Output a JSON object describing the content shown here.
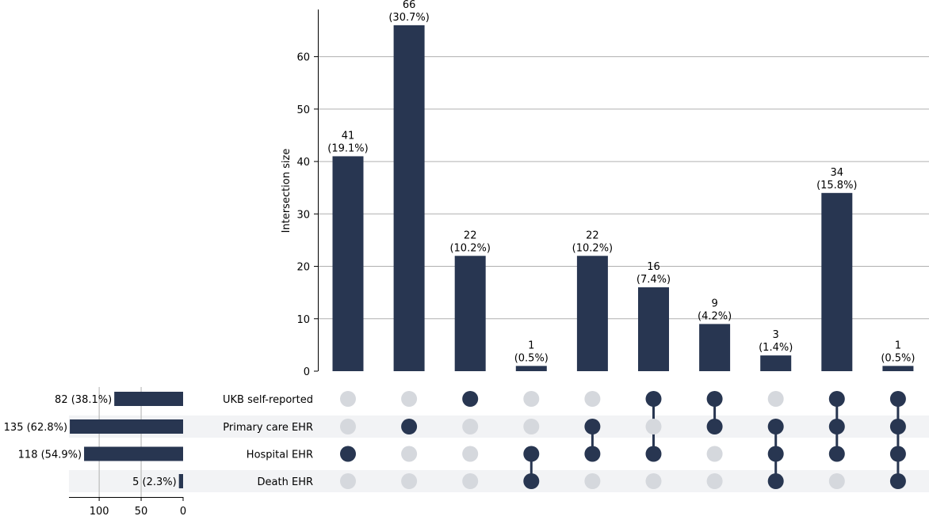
{
  "chart_data": {
    "type": "bar",
    "title": "",
    "ylabel": "Intersection size",
    "ylim": [
      0,
      69
    ],
    "yticks": [
      0,
      10,
      20,
      30,
      40,
      50,
      60
    ],
    "sets": [
      "UKB self-reported",
      "Primary care EHR",
      "Hospital EHR",
      "Death EHR"
    ],
    "set_sizes": [
      82,
      135,
      118,
      5
    ],
    "set_size_labels": [
      "82 (38.1%)",
      "135 (62.8%)",
      "118 (54.9%)",
      "5 (2.3%)"
    ],
    "set_size_xlim": [
      0,
      136
    ],
    "set_size_ticks": [
      100,
      50,
      0
    ],
    "intersections": [
      {
        "members": [
          2
        ],
        "value": 41,
        "count_label": "41",
        "pct_label": "(19.1%)"
      },
      {
        "members": [
          1
        ],
        "value": 66,
        "count_label": "66",
        "pct_label": "(30.7%)"
      },
      {
        "members": [
          0
        ],
        "value": 22,
        "count_label": "22",
        "pct_label": "(10.2%)"
      },
      {
        "members": [
          2,
          3
        ],
        "value": 1,
        "count_label": "1",
        "pct_label": "(0.5%)"
      },
      {
        "members": [
          1,
          2
        ],
        "value": 22,
        "count_label": "22",
        "pct_label": "(10.2%)"
      },
      {
        "members": [
          0,
          2
        ],
        "value": 16,
        "count_label": "16",
        "pct_label": "(7.4%)"
      },
      {
        "members": [
          0,
          1
        ],
        "value": 9,
        "count_label": "9",
        "pct_label": "(4.2%)"
      },
      {
        "members": [
          1,
          2,
          3
        ],
        "value": 3,
        "count_label": "3",
        "pct_label": "(1.4%)"
      },
      {
        "members": [
          0,
          1,
          2
        ],
        "value": 34,
        "count_label": "34",
        "pct_label": "(15.8%)"
      },
      {
        "members": [
          0,
          1,
          2,
          3
        ],
        "value": 1,
        "count_label": "1",
        "pct_label": "(0.5%)"
      }
    ],
    "grid": true,
    "colors": {
      "bar": "#283651",
      "dot_inactive": "#d5d8dd",
      "row_shade": "#f2f3f5",
      "grid": "#b0b0b0"
    }
  }
}
